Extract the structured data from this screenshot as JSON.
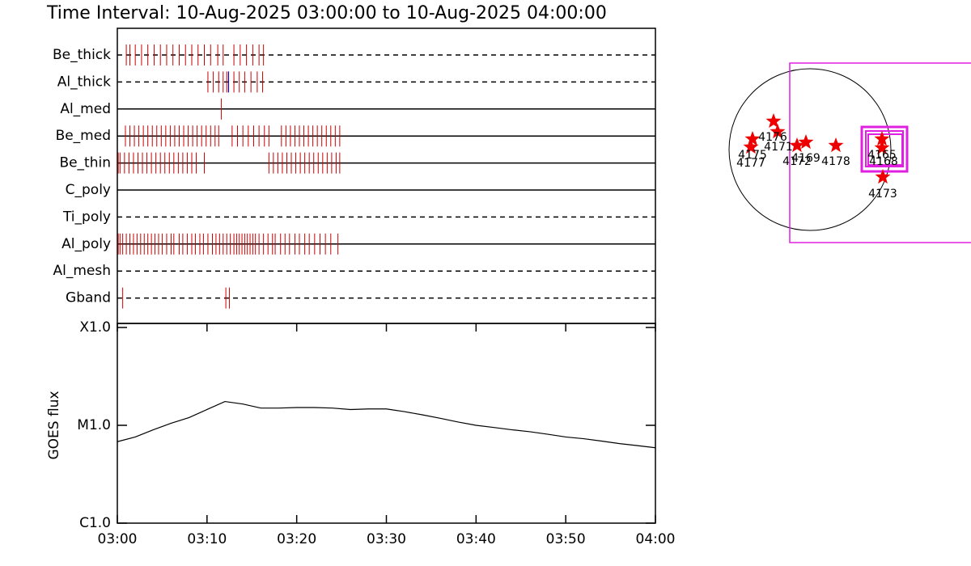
{
  "title": "Time Interval: 10-Aug-2025 03:00:00 to 10-Aug-2025 04:00:00",
  "chart_data": [
    {
      "type": "timeline",
      "xlim": [
        0,
        60
      ],
      "series": [
        {
          "name": "Be_thick",
          "color": "#cc0000",
          "dashed": true,
          "x": [
            1.0,
            1.4,
            2.0,
            2.7,
            3.4,
            4.1,
            4.8,
            5.5,
            6.2,
            6.9,
            7.6,
            8.3,
            9.0,
            9.7,
            10.4,
            11.2,
            11.8,
            13.0,
            13.7,
            14.4,
            15.1,
            15.8,
            16.3
          ]
        },
        {
          "name": "Al_thick",
          "color": "#cc0000",
          "dashed": true,
          "x": [
            10.1,
            10.7,
            11.3,
            11.8,
            12.2,
            13.0,
            13.6,
            14.2,
            14.9,
            15.6,
            16.2
          ],
          "highlight": {
            "color": "#0000cc",
            "x": [
              12.4
            ]
          }
        },
        {
          "name": "Al_med",
          "color": "#cc0000",
          "dashed": false,
          "x": [
            11.6
          ]
        },
        {
          "name": "Be_med",
          "color": "#cc0000",
          "dashed": false,
          "x": [
            0.9,
            1.4,
            1.9,
            2.4,
            2.9,
            3.4,
            3.9,
            4.4,
            4.9,
            5.4,
            5.9,
            6.4,
            6.9,
            7.4,
            7.9,
            8.4,
            8.9,
            9.4,
            9.9,
            10.4,
            10.9,
            11.3,
            12.8,
            13.4,
            14.0,
            14.6,
            15.2,
            15.8,
            16.4,
            16.9,
            18.3,
            18.8,
            19.3,
            19.8,
            20.3,
            20.8,
            21.3,
            21.8,
            22.3,
            22.8,
            23.3,
            23.8,
            24.3,
            24.8
          ]
        },
        {
          "name": "Be_thin",
          "color": "#cc0000",
          "dashed": false,
          "x": [
            0.1,
            0.3,
            0.8,
            1.3,
            1.8,
            2.3,
            2.8,
            3.3,
            3.8,
            4.3,
            4.8,
            5.3,
            5.8,
            6.3,
            6.8,
            7.3,
            7.8,
            8.3,
            8.8,
            9.7,
            16.9,
            17.4,
            17.9,
            18.4,
            18.9,
            19.4,
            19.9,
            20.4,
            20.9,
            21.4,
            21.9,
            22.4,
            22.9,
            23.4,
            23.9,
            24.4,
            24.8
          ]
        },
        {
          "name": "C_poly",
          "color": "#cc0000",
          "dashed": false,
          "x": []
        },
        {
          "name": "Ti_poly",
          "color": "#cc0000",
          "dashed": true,
          "x": []
        },
        {
          "name": "Al_poly",
          "color": "#cc0000",
          "dashed": false,
          "x": [
            0.1,
            0.3,
            0.6,
            1.0,
            1.4,
            1.8,
            2.2,
            2.6,
            3.0,
            3.4,
            3.8,
            4.2,
            4.6,
            5.0,
            5.5,
            6.0,
            6.3,
            6.9,
            7.3,
            7.8,
            8.3,
            8.7,
            9.2,
            9.6,
            10.1,
            10.6,
            11.0,
            11.4,
            11.8,
            12.2,
            12.6,
            13.0,
            13.3,
            13.6,
            13.9,
            14.2,
            14.5,
            14.8,
            15.1,
            15.4,
            15.8,
            16.3,
            16.8,
            17.3,
            17.6,
            18.2,
            18.7,
            19.2,
            19.8,
            20.3,
            20.9,
            21.4,
            22.0,
            22.6,
            23.2,
            23.8,
            24.6
          ]
        },
        {
          "name": "Al_mesh",
          "color": "#cc0000",
          "dashed": true,
          "x": []
        },
        {
          "name": "Gband",
          "color": "#cc0000",
          "dashed": true,
          "x": [
            0.6,
            12.1,
            12.5
          ]
        }
      ]
    },
    {
      "type": "line",
      "ylabel": "GOES flux",
      "log_scale": true,
      "xlim": [
        0,
        60
      ],
      "xticks": [
        {
          "value": 0,
          "label": "03:00"
        },
        {
          "value": 10,
          "label": "03:10"
        },
        {
          "value": 20,
          "label": "03:20"
        },
        {
          "value": 30,
          "label": "03:30"
        },
        {
          "value": 40,
          "label": "03:40"
        },
        {
          "value": 50,
          "label": "03:50"
        },
        {
          "value": 60,
          "label": "04:00"
        }
      ],
      "ylim": [
        1e-06,
        0.0001
      ],
      "yticks": [
        {
          "value": 1e-06,
          "label": "C1.0"
        },
        {
          "value": 1e-05,
          "label": "M1.0"
        },
        {
          "value": 0.0001,
          "label": "X1.0"
        }
      ],
      "series": [
        {
          "color": "#000000",
          "x": [
            0,
            2,
            4,
            6,
            8,
            10,
            12,
            14,
            16,
            18,
            20,
            22,
            24,
            26,
            28,
            30,
            32,
            34,
            36,
            38,
            40,
            42,
            44,
            46,
            48,
            50,
            52,
            54,
            56,
            58,
            60
          ],
          "values": [
            6.8e-06,
            7.6e-06,
            9e-06,
            1.05e-05,
            1.2e-05,
            1.45e-05,
            1.75e-05,
            1.65e-05,
            1.5e-05,
            1.5e-05,
            1.52e-05,
            1.52e-05,
            1.5e-05,
            1.45e-05,
            1.47e-05,
            1.47e-05,
            1.38e-05,
            1.28e-05,
            1.18e-05,
            1.08e-05,
            1e-05,
            9.5e-06,
            9e-06,
            8.6e-06,
            8.1e-06,
            7.6e-06,
            7.3e-06,
            6.9e-06,
            6.5e-06,
            6.2e-06,
            5.9e-06
          ]
        }
      ]
    },
    {
      "type": "map",
      "regions": [
        "4175",
        "4177",
        "4176",
        "4171",
        "4172",
        "4169",
        "4178",
        "4165",
        "4168",
        "4173"
      ]
    }
  ]
}
